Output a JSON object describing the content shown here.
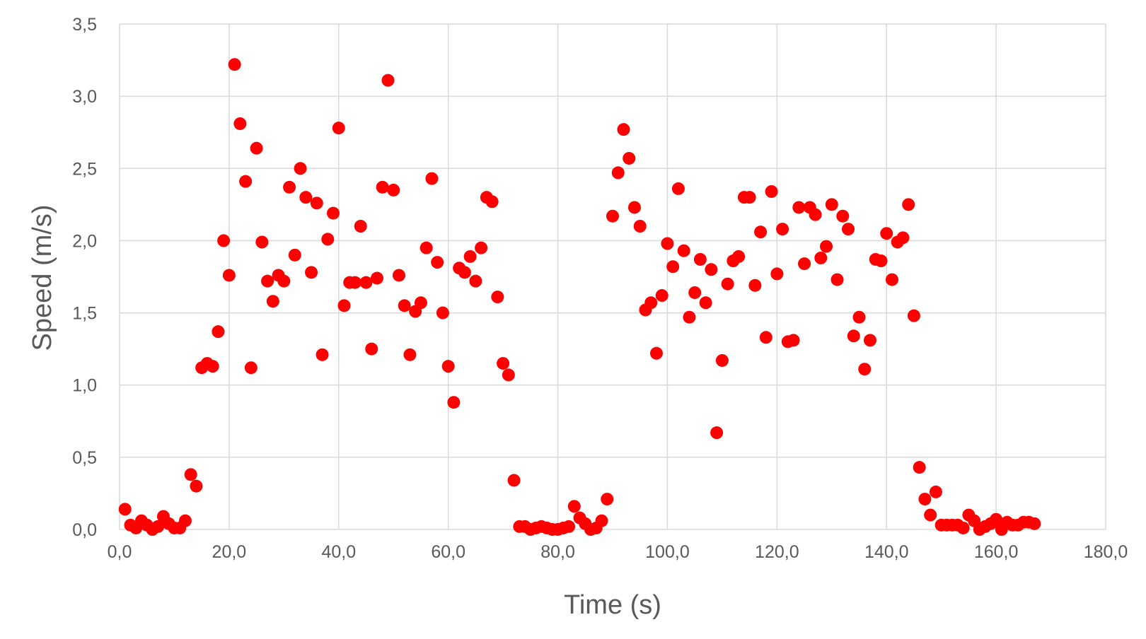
{
  "chart_data": {
    "type": "scatter",
    "title": "",
    "xlabel": "Time (s)",
    "ylabel": "Speed (m/s)",
    "xlim": [
      0,
      180
    ],
    "ylim": [
      0,
      3.5
    ],
    "x_ticks": [
      "0,0",
      "20,0",
      "40,0",
      "60,0",
      "80,0",
      "100,0",
      "120,0",
      "140,0",
      "160,0",
      "180,0"
    ],
    "y_ticks": [
      "0,0",
      "0,5",
      "1,0",
      "1,5",
      "2,0",
      "2,5",
      "3,0",
      "3,5"
    ],
    "grid": true,
    "legend": "none",
    "marker_color": "#ff0000",
    "series": [
      {
        "x": [
          1,
          2,
          3,
          4,
          5,
          6,
          7,
          8,
          9,
          10,
          11,
          12,
          13,
          14,
          15,
          16,
          17,
          18,
          19,
          20,
          21,
          22,
          23,
          24,
          25,
          26,
          27,
          28,
          29,
          30,
          31,
          32,
          33,
          34,
          35,
          36,
          37,
          38,
          39,
          40,
          41,
          42,
          43,
          44,
          45,
          46,
          47,
          48,
          49,
          50,
          51,
          52,
          53,
          54,
          55,
          56,
          57,
          58,
          59,
          60,
          61,
          62,
          63,
          64,
          65,
          66,
          67,
          68,
          69,
          70,
          71,
          72,
          73,
          74,
          75,
          76,
          77,
          78,
          79,
          80,
          81,
          82,
          83,
          84,
          85,
          86,
          87,
          88,
          89,
          90,
          91,
          92,
          93,
          94,
          95,
          96,
          97,
          98,
          99,
          100,
          101,
          102,
          103,
          104,
          105,
          106,
          107,
          108,
          109,
          110,
          111,
          112,
          113,
          114,
          115,
          116,
          117,
          118,
          119,
          120,
          121,
          122,
          123,
          124,
          125,
          126,
          127,
          128,
          129,
          130,
          131,
          132,
          133,
          134,
          135,
          136,
          137,
          138,
          139,
          140,
          141,
          142,
          143,
          144,
          145,
          146,
          147,
          148,
          149,
          150,
          151,
          152,
          153,
          154,
          155,
          156,
          157,
          158,
          159,
          160,
          161,
          162,
          163,
          164,
          165,
          166,
          167
        ],
        "y": [
          0.14,
          0.03,
          0.01,
          0.06,
          0.03,
          0.0,
          0.02,
          0.09,
          0.04,
          0.01,
          0.01,
          0.06,
          0.38,
          0.3,
          1.12,
          1.15,
          1.13,
          1.37,
          2.0,
          1.76,
          3.22,
          2.81,
          2.41,
          1.12,
          2.64,
          1.99,
          1.72,
          1.58,
          1.76,
          1.72,
          2.37,
          1.9,
          2.5,
          2.3,
          1.78,
          2.26,
          1.21,
          2.01,
          2.19,
          2.78,
          1.55,
          1.71,
          1.71,
          2.1,
          1.71,
          1.25,
          1.74,
          2.37,
          3.11,
          2.35,
          1.76,
          1.55,
          1.21,
          1.51,
          1.57,
          1.95,
          2.43,
          1.85,
          1.5,
          1.13,
          0.88,
          1.81,
          1.78,
          1.89,
          1.72,
          1.95,
          2.3,
          2.27,
          1.61,
          1.15,
          1.07,
          0.34,
          0.02,
          0.02,
          0.0,
          0.01,
          0.02,
          0.01,
          0.0,
          0.0,
          0.01,
          0.02,
          0.16,
          0.08,
          0.04,
          0.0,
          0.01,
          0.06,
          0.21,
          2.17,
          2.47,
          2.77,
          2.57,
          2.23,
          2.1,
          1.52,
          1.57,
          1.22,
          1.62,
          1.98,
          1.82,
          2.36,
          1.93,
          1.47,
          1.64,
          1.87,
          1.57,
          1.8,
          0.67,
          1.17,
          1.7,
          1.86,
          1.89,
          2.3,
          2.3,
          1.69,
          2.06,
          1.33,
          2.34,
          1.77,
          2.08,
          1.3,
          1.31,
          2.23,
          1.84,
          2.23,
          2.18,
          1.88,
          1.96,
          2.25,
          1.73,
          2.17,
          2.08,
          1.34,
          1.47,
          1.11,
          1.31,
          1.87,
          1.86,
          2.05,
          1.73,
          1.99,
          2.02,
          2.25,
          1.48,
          0.43,
          0.21,
          0.1,
          0.26,
          0.03,
          0.03,
          0.03,
          0.03,
          0.01,
          0.1,
          0.06,
          0.0,
          0.02,
          0.04,
          0.07,
          0.0,
          0.05,
          0.03,
          0.03,
          0.05,
          0.05,
          0.04
        ]
      }
    ]
  }
}
